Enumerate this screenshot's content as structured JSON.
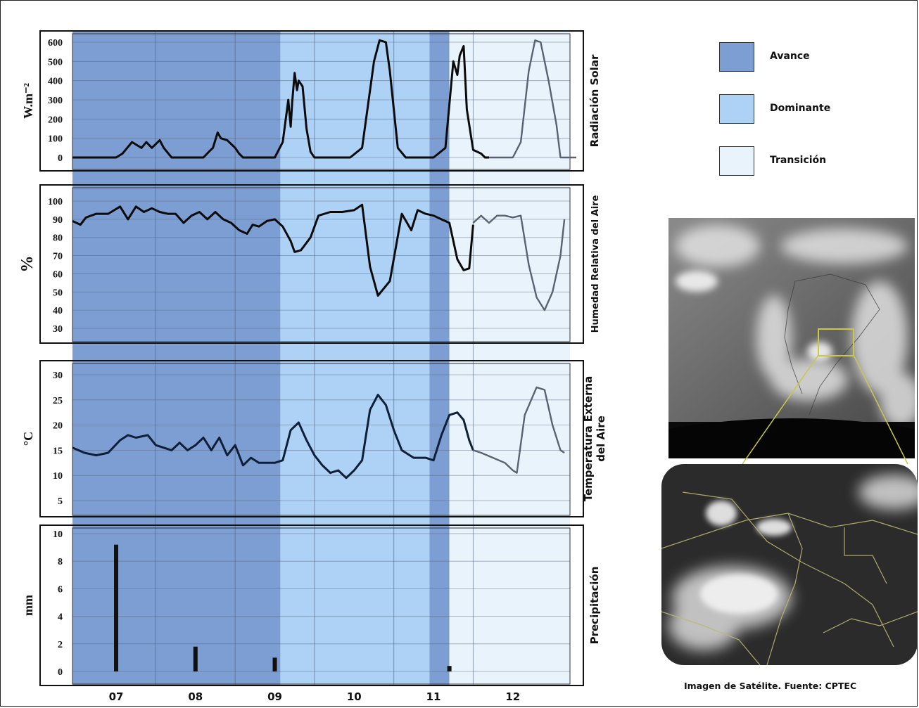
{
  "legend": {
    "items": [
      {
        "label": "Avance",
        "color": "#7d9ed3"
      },
      {
        "label": "Dominante",
        "color": "#aed1f6"
      },
      {
        "label": "Transición",
        "color": "#e9f3fc"
      }
    ]
  },
  "satellite": {
    "caption": "Imagen de Satélite. Fuente: CPTEC"
  },
  "chart_data": [
    {
      "type": "line",
      "panel": "Radiación Solar",
      "ylabel": "W.m⁻²",
      "side_label": "Radiación Solar",
      "ylim": [
        0,
        650
      ],
      "yticks": [
        0,
        100,
        200,
        300,
        400,
        500,
        600
      ],
      "x_days": [
        "07",
        "08",
        "09",
        "10",
        "11",
        "12"
      ],
      "series": [
        {
          "x": [
            6.45,
            7.0,
            7.08,
            7.2,
            7.28,
            7.32,
            7.38,
            7.45,
            7.55,
            7.6,
            7.7,
            7.8,
            8.0,
            8.1,
            8.17,
            8.22,
            8.28,
            8.32,
            8.4,
            8.5,
            8.55,
            8.6,
            8.75,
            9.0,
            9.1,
            9.17,
            9.2,
            9.22,
            9.25,
            9.28,
            9.3,
            9.35,
            9.4,
            9.45,
            9.5,
            9.6,
            9.7,
            9.95,
            10.1,
            10.25,
            10.32,
            10.4,
            10.45,
            10.55,
            10.65,
            10.8,
            11.0,
            11.15,
            11.25,
            11.3,
            11.33,
            11.38,
            11.42,
            11.5,
            11.6,
            11.65,
            11.7
          ],
          "y": [
            0,
            0,
            20,
            80,
            60,
            50,
            80,
            50,
            90,
            50,
            0,
            0,
            0,
            0,
            30,
            50,
            130,
            100,
            90,
            50,
            20,
            0,
            0,
            0,
            80,
            300,
            160,
            290,
            440,
            350,
            400,
            370,
            150,
            30,
            0,
            0,
            0,
            0,
            50,
            500,
            610,
            600,
            450,
            50,
            0,
            0,
            0,
            50,
            500,
            430,
            530,
            580,
            250,
            40,
            20,
            0,
            0
          ]
        },
        {
          "name": "transition",
          "x": [
            11.7,
            12.0,
            12.1,
            12.2,
            12.28,
            12.35,
            12.45,
            12.55,
            12.6,
            12.8
          ],
          "y": [
            0,
            0,
            80,
            450,
            610,
            600,
            400,
            170,
            0,
            0
          ]
        }
      ]
    },
    {
      "type": "line",
      "panel": "Humedad Relativa del Aire",
      "ylabel": "%",
      "side_label": "Humedad Relativa del Aire",
      "ylim": [
        25,
        102
      ],
      "yticks": [
        30,
        40,
        50,
        60,
        70,
        80,
        90,
        100
      ],
      "series": [
        {
          "x": [
            6.45,
            6.55,
            6.62,
            6.75,
            6.9,
            7.05,
            7.15,
            7.25,
            7.35,
            7.45,
            7.55,
            7.65,
            7.75,
            7.85,
            7.95,
            8.05,
            8.15,
            8.25,
            8.35,
            8.45,
            8.55,
            8.65,
            8.72,
            8.8,
            8.9,
            9.0,
            9.1,
            9.2,
            9.25,
            9.33,
            9.45,
            9.55,
            9.7,
            9.85,
            10.0,
            10.1,
            10.2,
            10.3,
            10.45,
            10.6,
            10.72,
            10.8,
            10.9,
            11.0,
            11.1,
            11.2,
            11.3,
            11.38,
            11.45,
            11.5
          ],
          "y": [
            89,
            87,
            91,
            93,
            93,
            97,
            90,
            97,
            94,
            96,
            94,
            93,
            93,
            88,
            92,
            94,
            90,
            94,
            90,
            88,
            84,
            82,
            87,
            86,
            89,
            90,
            86,
            78,
            72,
            73,
            80,
            92,
            94,
            94,
            95,
            98,
            64,
            48,
            56,
            93,
            84,
            95,
            93,
            92,
            90,
            88,
            68,
            62,
            63,
            87
          ]
        },
        {
          "name": "transition",
          "x": [
            11.5,
            11.6,
            11.7,
            11.8,
            11.9,
            12.0,
            12.1,
            12.2,
            12.3,
            12.4,
            12.5,
            12.6,
            12.65
          ],
          "y": [
            88,
            92,
            88,
            92,
            92,
            91,
            92,
            65,
            47,
            40,
            50,
            70,
            90
          ]
        }
      ]
    },
    {
      "type": "line",
      "panel": "Temperatura Externa del Aire",
      "ylabel": "°C",
      "side_label": [
        "Temperatura Externa",
        "del Aire"
      ],
      "ylim": [
        3,
        31
      ],
      "yticks": [
        5,
        10,
        15,
        20,
        25,
        30
      ],
      "series": [
        {
          "x": [
            6.45,
            6.6,
            6.75,
            6.9,
            7.05,
            7.15,
            7.25,
            7.4,
            7.5,
            7.6,
            7.7,
            7.8,
            7.9,
            8.0,
            8.1,
            8.2,
            8.3,
            8.4,
            8.5,
            8.6,
            8.7,
            8.8,
            9.0,
            9.1,
            9.2,
            9.3,
            9.4,
            9.5,
            9.6,
            9.7,
            9.8,
            9.9,
            10.0,
            10.1,
            10.2,
            10.3,
            10.4,
            10.5,
            10.6,
            10.75,
            10.9,
            11.0,
            11.1,
            11.2,
            11.3,
            11.38,
            11.45,
            11.5
          ],
          "y": [
            15.5,
            14.5,
            14,
            14.5,
            17,
            18,
            17.5,
            18,
            16,
            15.5,
            15,
            16.5,
            15,
            16,
            17.5,
            15,
            17.5,
            14,
            16,
            12,
            13.5,
            12.5,
            12.5,
            13,
            19,
            20.5,
            17,
            14,
            12,
            10.5,
            11,
            9.5,
            11,
            13,
            23,
            26,
            24,
            19,
            15,
            13.5,
            13.5,
            13,
            18,
            22,
            22.5,
            21,
            17,
            15
          ]
        },
        {
          "name": "transition",
          "x": [
            11.5,
            11.6,
            11.75,
            11.9,
            12.0,
            12.05,
            12.15,
            12.3,
            12.4,
            12.5,
            12.6,
            12.65
          ],
          "y": [
            15,
            14.5,
            13.5,
            12.5,
            11,
            10.5,
            22,
            27.5,
            27,
            20,
            15,
            14.5
          ]
        }
      ]
    },
    {
      "type": "bar",
      "panel": "Precipitación",
      "ylabel": "mm",
      "side_label": "Precipitación",
      "ylim": [
        0,
        10
      ],
      "yticks": [
        0,
        2,
        4,
        6,
        8,
        10
      ],
      "categories": [
        "07",
        "08",
        "09",
        "11"
      ],
      "x": [
        7.0,
        8.0,
        9.0,
        11.2
      ],
      "values": [
        9.2,
        1.8,
        1.0,
        0.4
      ]
    }
  ]
}
